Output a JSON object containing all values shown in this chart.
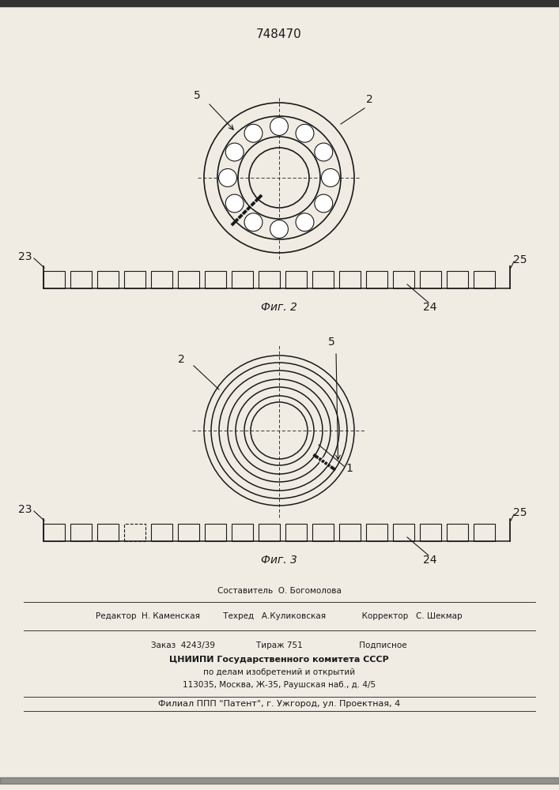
{
  "patent_number": "748470",
  "fig2_label": "Фиг. 2",
  "fig3_label": "Фиг. 3",
  "background_color": "#f0ece4",
  "line_color": "#1a1a1a",
  "label_fontsize": 9,
  "title_fontsize": 10,
  "footer_line0": "Составитель  О. Богомолова",
  "footer_line1": "Редактор  Н. Каменская         Техред   А.Куликовская              Корректор   С. Шекмар",
  "footer_line2": "Заказ  4243/39                Тираж 751                      Подписное",
  "footer_line3": "ЦНИИПИ Государственного комитета СССР",
  "footer_line4": "по делам изобретений и открытий",
  "footer_line5": "113035, Москва, Ж-35, Раушская наб., д. 4/5",
  "footer_line6": "Филиал ППП \"Патент\", г. Ужгород, ул. Проектная, 4"
}
